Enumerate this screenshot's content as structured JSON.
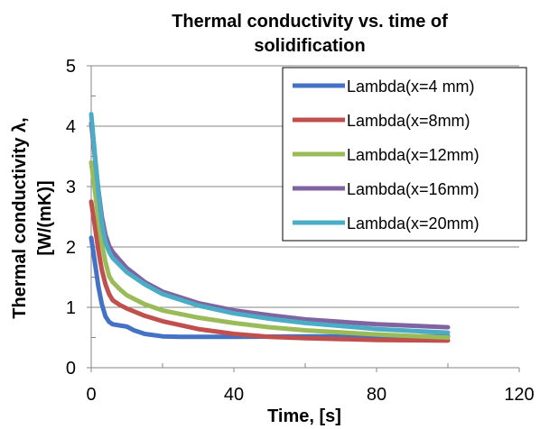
{
  "chart_data": {
    "type": "line",
    "title_lines": [
      "Thermal conductivity vs. time of",
      "solidification"
    ],
    "xlabel": "Time, [s]",
    "ylabel_lines": [
      "Thermal conductivity λ,",
      "[W/(mK)]"
    ],
    "xlim": [
      0,
      120
    ],
    "ylim": [
      0,
      5
    ],
    "x_ticks": [
      0,
      40,
      80,
      120
    ],
    "y_ticks": [
      0,
      1,
      2,
      3,
      4,
      5
    ],
    "grid": "horizontal",
    "legend_position": "top-right",
    "series": [
      {
        "name": "Lambda(x=4 mm)",
        "color": "#4472C4",
        "points": [
          [
            0,
            2.15
          ],
          [
            1,
            1.75
          ],
          [
            2,
            1.35
          ],
          [
            3,
            1.05
          ],
          [
            4,
            0.85
          ],
          [
            5,
            0.76
          ],
          [
            6,
            0.72
          ],
          [
            8,
            0.7
          ],
          [
            10,
            0.68
          ],
          [
            12,
            0.62
          ],
          [
            15,
            0.56
          ],
          [
            20,
            0.52
          ],
          [
            25,
            0.51
          ],
          [
            30,
            0.51
          ],
          [
            40,
            0.51
          ],
          [
            60,
            0.52
          ],
          [
            80,
            0.52
          ],
          [
            100,
            0.52
          ]
        ]
      },
      {
        "name": "Lambda(x=8mm)",
        "color": "#C0504D",
        "points": [
          [
            0,
            2.75
          ],
          [
            1,
            2.35
          ],
          [
            2,
            1.95
          ],
          [
            3,
            1.62
          ],
          [
            4,
            1.38
          ],
          [
            5,
            1.22
          ],
          [
            6,
            1.12
          ],
          [
            8,
            1.04
          ],
          [
            10,
            0.98
          ],
          [
            15,
            0.86
          ],
          [
            20,
            0.77
          ],
          [
            30,
            0.64
          ],
          [
            40,
            0.56
          ],
          [
            50,
            0.51
          ],
          [
            60,
            0.49
          ],
          [
            80,
            0.46
          ],
          [
            100,
            0.45
          ]
        ]
      },
      {
        "name": "Lambda(x=12mm)",
        "color": "#9BBB59",
        "points": [
          [
            0,
            3.4
          ],
          [
            1,
            2.95
          ],
          [
            2,
            2.45
          ],
          [
            3,
            2.05
          ],
          [
            4,
            1.75
          ],
          [
            5,
            1.52
          ],
          [
            6,
            1.42
          ],
          [
            8,
            1.3
          ],
          [
            10,
            1.2
          ],
          [
            15,
            1.05
          ],
          [
            20,
            0.95
          ],
          [
            30,
            0.83
          ],
          [
            40,
            0.74
          ],
          [
            50,
            0.67
          ],
          [
            60,
            0.62
          ],
          [
            80,
            0.55
          ],
          [
            100,
            0.5
          ]
        ]
      },
      {
        "name": "Lambda(x=16mm)",
        "color": "#8064A2",
        "points": [
          [
            0,
            4.05
          ],
          [
            1,
            3.5
          ],
          [
            2,
            2.95
          ],
          [
            3,
            2.5
          ],
          [
            4,
            2.2
          ],
          [
            5,
            2.02
          ],
          [
            6,
            1.92
          ],
          [
            8,
            1.78
          ],
          [
            10,
            1.65
          ],
          [
            15,
            1.42
          ],
          [
            20,
            1.26
          ],
          [
            30,
            1.07
          ],
          [
            40,
            0.95
          ],
          [
            50,
            0.87
          ],
          [
            60,
            0.8
          ],
          [
            80,
            0.72
          ],
          [
            100,
            0.67
          ]
        ]
      },
      {
        "name": "Lambda(x=20mm)",
        "color": "#4BACC6",
        "points": [
          [
            0,
            4.2
          ],
          [
            1,
            3.55
          ],
          [
            2,
            2.9
          ],
          [
            3,
            2.4
          ],
          [
            4,
            2.08
          ],
          [
            5,
            1.92
          ],
          [
            6,
            1.82
          ],
          [
            8,
            1.7
          ],
          [
            10,
            1.58
          ],
          [
            15,
            1.38
          ],
          [
            20,
            1.22
          ],
          [
            30,
            1.03
          ],
          [
            40,
            0.9
          ],
          [
            50,
            0.81
          ],
          [
            60,
            0.74
          ],
          [
            80,
            0.64
          ],
          [
            100,
            0.58
          ]
        ]
      }
    ]
  }
}
